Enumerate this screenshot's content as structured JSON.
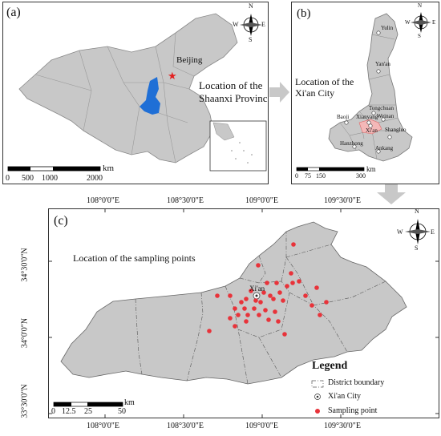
{
  "panel_a": {
    "tag": "(a)",
    "capital": "Beijing",
    "caption_line1": "Location of the",
    "caption_line2": "Shaanxi Province",
    "scale_unit": "km",
    "scale_ticks": [
      "0",
      "500",
      "1000",
      "2000"
    ]
  },
  "panel_b": {
    "tag": "(b)",
    "caption_line1": "Location of the",
    "caption_line2": "Xi'an City",
    "cities": [
      "Yulin",
      "Yan'an",
      "Tongchuan",
      "Weinan",
      "Xianyang",
      "Baoji",
      "Xi'an",
      "Shangluo",
      "Hanzhong",
      "Ankang"
    ],
    "scale_unit": "km",
    "scale_ticks": [
      "0",
      "75",
      "150",
      "300"
    ]
  },
  "panel_c": {
    "tag": "(c)",
    "title": "Location of the sampling points",
    "city": "Xi'an",
    "scale_unit": "km",
    "scale_ticks": [
      "0",
      "12.5",
      "25",
      "50"
    ],
    "legend": {
      "title": "Legend",
      "items": [
        "District boundary",
        "Xi'an City",
        "Sampling point"
      ]
    },
    "sample_color": "#e8333a"
  },
  "north_arrow": {
    "n": "N",
    "s": "S",
    "e": "E",
    "w": "W"
  },
  "lon_labels": [
    "108°0'0\"E",
    "108°30'0\"E",
    "109°0'0\"E",
    "109°30'0\"E"
  ],
  "lat_labels": [
    "34°30'0\"N",
    "34°0'0\"N",
    "33°30'0\"N"
  ],
  "colors": {
    "land": "#c8c8c8",
    "shaanxi": "#1f6fd6",
    "xian": "#f4b8b8",
    "capital_star": "#e32020"
  }
}
